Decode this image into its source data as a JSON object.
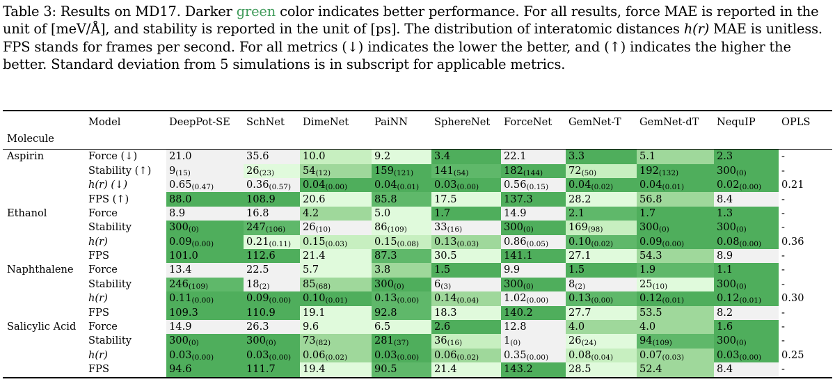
{
  "caption": {
    "lines": [
      "Table 3: Results on MD17. Darker ",
      "green",
      " color indicates better performance. For all results, force MAE is reported in the unit of [meV/Å], and stability is reported in the unit of [ps]. The distribution of interatomic distances ",
      "h(r)",
      " MAE is unitless. FPS stands for frames per second. For all metrics (↓) indicates the lower the better, and (↑) indicates the higher the better. Standard deviation from 5 simulations is in subscript for applicable metrics."
    ]
  },
  "header": {
    "model_label": "Model",
    "molecule_label": "Molecule",
    "models": [
      "DeepPot-SE",
      "SchNet",
      "DimeNet",
      "PaiNN",
      "SphereNet",
      "ForceNet",
      "GemNet-T",
      "GemNet-dT",
      "NequIP",
      "OPLS"
    ]
  },
  "rows": [
    {
      "molecule": "Aspirin",
      "metric": "Force (↓)",
      "cells": [
        {
          "v": "21.0",
          "s": "0"
        },
        {
          "v": "35.6",
          "s": "0"
        },
        {
          "v": "10.0",
          "s": "2"
        },
        {
          "v": "9.2",
          "s": "1"
        },
        {
          "v": "3.4",
          "s": "5"
        },
        {
          "v": "22.1",
          "s": "0"
        },
        {
          "v": "3.3",
          "s": "5"
        },
        {
          "v": "5.1",
          "s": "3"
        },
        {
          "v": "2.3",
          "s": "5"
        },
        {
          "v": "-"
        }
      ]
    },
    {
      "molecule": "",
      "metric": "Stability (↑)",
      "cells": [
        {
          "v": "9",
          "sd": "(15)",
          "s": "0"
        },
        {
          "v": "26",
          "sd": "(23)",
          "s": "1"
        },
        {
          "v": "54",
          "sd": "(12)",
          "s": "3"
        },
        {
          "v": "159",
          "sd": "(121)",
          "s": "5"
        },
        {
          "v": "141",
          "sd": "(54)",
          "s": "4"
        },
        {
          "v": "182",
          "sd": "(144)",
          "s": "5"
        },
        {
          "v": "72",
          "sd": "(50)",
          "s": "2"
        },
        {
          "v": "192",
          "sd": "(132)",
          "s": "5"
        },
        {
          "v": "300",
          "sd": "(0)",
          "s": "5"
        },
        {
          "v": "-"
        }
      ]
    },
    {
      "molecule": "",
      "metric": "h(r) (↓)",
      "cells": [
        {
          "v": "0.65",
          "sd": "(0.47)",
          "s": "0"
        },
        {
          "v": "0.36",
          "sd": "(0.57)",
          "s": "0"
        },
        {
          "v": "0.04",
          "sd": "(0.00)",
          "s": "5"
        },
        {
          "v": "0.04",
          "sd": "(0.01)",
          "s": "5"
        },
        {
          "v": "0.03",
          "sd": "(0.00)",
          "s": "5"
        },
        {
          "v": "0.56",
          "sd": "(0.15)",
          "s": "0"
        },
        {
          "v": "0.04",
          "sd": "(0.02)",
          "s": "5"
        },
        {
          "v": "0.04",
          "sd": "(0.01)",
          "s": "5"
        },
        {
          "v": "0.02",
          "sd": "(0.00)",
          "s": "5"
        },
        {
          "v": "0.21"
        }
      ]
    },
    {
      "molecule": "",
      "metric": "FPS (↑)",
      "cells": [
        {
          "v": "88.0",
          "s": "5"
        },
        {
          "v": "108.9",
          "s": "5"
        },
        {
          "v": "20.6",
          "s": "1"
        },
        {
          "v": "85.8",
          "s": "4"
        },
        {
          "v": "17.5",
          "s": "1"
        },
        {
          "v": "137.3",
          "s": "5"
        },
        {
          "v": "28.2",
          "s": "1"
        },
        {
          "v": "56.8",
          "s": "3"
        },
        {
          "v": "8.4",
          "s": "0"
        },
        {
          "v": "-"
        }
      ]
    },
    {
      "molecule": "Ethanol",
      "metric": "Force",
      "cells": [
        {
          "v": "8.9",
          "s": "0"
        },
        {
          "v": "16.8",
          "s": "0"
        },
        {
          "v": "4.2",
          "s": "3"
        },
        {
          "v": "5.0",
          "s": "1"
        },
        {
          "v": "1.7",
          "s": "5"
        },
        {
          "v": "14.9",
          "s": "0"
        },
        {
          "v": "2.1",
          "s": "4"
        },
        {
          "v": "1.7",
          "s": "5"
        },
        {
          "v": "1.3",
          "s": "5"
        },
        {
          "v": "-"
        }
      ]
    },
    {
      "molecule": "",
      "metric": "Stability",
      "cells": [
        {
          "v": "300",
          "sd": "(0)",
          "s": "5"
        },
        {
          "v": "247",
          "sd": "(106)",
          "s": "4"
        },
        {
          "v": "26",
          "sd": "(10)",
          "s": "0"
        },
        {
          "v": "86",
          "sd": "(109)",
          "s": "1"
        },
        {
          "v": "33",
          "sd": "(16)",
          "s": "0"
        },
        {
          "v": "300",
          "sd": "(0)",
          "s": "5"
        },
        {
          "v": "169",
          "sd": "(98)",
          "s": "2"
        },
        {
          "v": "300",
          "sd": "(0)",
          "s": "5"
        },
        {
          "v": "300",
          "sd": "(0)",
          "s": "5"
        },
        {
          "v": "-"
        }
      ]
    },
    {
      "molecule": "",
      "metric": "h(r)",
      "cells": [
        {
          "v": "0.09",
          "sd": "(0.00)",
          "s": "5"
        },
        {
          "v": "0.21",
          "sd": "(0.11)",
          "s": "1"
        },
        {
          "v": "0.15",
          "sd": "(0.03)",
          "s": "2"
        },
        {
          "v": "0.15",
          "sd": "(0.08)",
          "s": "2"
        },
        {
          "v": "0.13",
          "sd": "(0.03)",
          "s": "3"
        },
        {
          "v": "0.86",
          "sd": "(0.05)",
          "s": "0"
        },
        {
          "v": "0.10",
          "sd": "(0.02)",
          "s": "4"
        },
        {
          "v": "0.09",
          "sd": "(0.00)",
          "s": "5"
        },
        {
          "v": "0.08",
          "sd": "(0.00)",
          "s": "5"
        },
        {
          "v": "0.36"
        }
      ]
    },
    {
      "molecule": "",
      "metric": "FPS",
      "cells": [
        {
          "v": "101.0",
          "s": "5"
        },
        {
          "v": "112.6",
          "s": "5"
        },
        {
          "v": "21.4",
          "s": "1"
        },
        {
          "v": "87.3",
          "s": "4"
        },
        {
          "v": "30.5",
          "s": "1"
        },
        {
          "v": "141.1",
          "s": "5"
        },
        {
          "v": "27.1",
          "s": "1"
        },
        {
          "v": "54.3",
          "s": "3"
        },
        {
          "v": "8.9",
          "s": "0"
        },
        {
          "v": "-"
        }
      ]
    },
    {
      "molecule": "Naphthalene",
      "metric": "Force",
      "cells": [
        {
          "v": "13.4",
          "s": "0"
        },
        {
          "v": "22.5",
          "s": "0"
        },
        {
          "v": "5.7",
          "s": "1"
        },
        {
          "v": "3.8",
          "s": "3"
        },
        {
          "v": "1.5",
          "s": "5"
        },
        {
          "v": "9.9",
          "s": "0"
        },
        {
          "v": "1.5",
          "s": "5"
        },
        {
          "v": "1.9",
          "s": "4"
        },
        {
          "v": "1.1",
          "s": "5"
        },
        {
          "v": "-"
        }
      ]
    },
    {
      "molecule": "",
      "metric": "Stability",
      "cells": [
        {
          "v": "246",
          "sd": "(109)",
          "s": "4"
        },
        {
          "v": "18",
          "sd": "(2)",
          "s": "0"
        },
        {
          "v": "85",
          "sd": "(68)",
          "s": "3"
        },
        {
          "v": "300",
          "sd": "(0)",
          "s": "5"
        },
        {
          "v": "6",
          "sd": "(3)",
          "s": "0"
        },
        {
          "v": "300",
          "sd": "(0)",
          "s": "5"
        },
        {
          "v": "8",
          "sd": "(2)",
          "s": "0"
        },
        {
          "v": "25",
          "sd": "(10)",
          "s": "1"
        },
        {
          "v": "300",
          "sd": "(0)",
          "s": "5"
        },
        {
          "v": "-"
        }
      ]
    },
    {
      "molecule": "",
      "metric": "h(r)",
      "cells": [
        {
          "v": "0.11",
          "sd": "(0.00)",
          "s": "5"
        },
        {
          "v": "0.09",
          "sd": "(0.00)",
          "s": "5"
        },
        {
          "v": "0.10",
          "sd": "(0.01)",
          "s": "5"
        },
        {
          "v": "0.13",
          "sd": "(0.00)",
          "s": "4"
        },
        {
          "v": "0.14",
          "sd": "(0.04)",
          "s": "3"
        },
        {
          "v": "1.02",
          "sd": "(0.00)",
          "s": "0"
        },
        {
          "v": "0.13",
          "sd": "(0.00)",
          "s": "4"
        },
        {
          "v": "0.12",
          "sd": "(0.01)",
          "s": "5"
        },
        {
          "v": "0.12",
          "sd": "(0.01)",
          "s": "5"
        },
        {
          "v": "0.30"
        }
      ]
    },
    {
      "molecule": "",
      "metric": "FPS",
      "cells": [
        {
          "v": "109.3",
          "s": "5"
        },
        {
          "v": "110.9",
          "s": "5"
        },
        {
          "v": "19.1",
          "s": "1"
        },
        {
          "v": "92.8",
          "s": "4"
        },
        {
          "v": "18.3",
          "s": "1"
        },
        {
          "v": "140.2",
          "s": "5"
        },
        {
          "v": "27.7",
          "s": "1"
        },
        {
          "v": "53.5",
          "s": "3"
        },
        {
          "v": "8.2",
          "s": "0"
        },
        {
          "v": "-"
        }
      ]
    },
    {
      "molecule": "Salicylic Acid",
      "metric": "Force",
      "cells": [
        {
          "v": "14.9",
          "s": "0"
        },
        {
          "v": "26.3",
          "s": "0"
        },
        {
          "v": "9.6",
          "s": "1"
        },
        {
          "v": "6.5",
          "s": "1"
        },
        {
          "v": "2.6",
          "s": "5"
        },
        {
          "v": "12.8",
          "s": "0"
        },
        {
          "v": "4.0",
          "s": "3"
        },
        {
          "v": "4.0",
          "s": "3"
        },
        {
          "v": "1.6",
          "s": "5"
        },
        {
          "v": "-"
        }
      ]
    },
    {
      "molecule": "",
      "metric": "Stability",
      "cells": [
        {
          "v": "300",
          "sd": "(0)",
          "s": "5"
        },
        {
          "v": "300",
          "sd": "(0)",
          "s": "5"
        },
        {
          "v": "73",
          "sd": "(82)",
          "s": "3"
        },
        {
          "v": "281",
          "sd": "(37)",
          "s": "5"
        },
        {
          "v": "36",
          "sd": "(16)",
          "s": "2"
        },
        {
          "v": "1",
          "sd": "(0)",
          "s": "0"
        },
        {
          "v": "26",
          "sd": "(24)",
          "s": "1"
        },
        {
          "v": "94",
          "sd": "(109)",
          "s": "4"
        },
        {
          "v": "300",
          "sd": "(0)",
          "s": "5"
        },
        {
          "v": "-"
        }
      ]
    },
    {
      "molecule": "",
      "metric": "h(r)",
      "cells": [
        {
          "v": "0.03",
          "sd": "(0.00)",
          "s": "5"
        },
        {
          "v": "0.03",
          "sd": "(0.00)",
          "s": "5"
        },
        {
          "v": "0.06",
          "sd": "(0.02)",
          "s": "3"
        },
        {
          "v": "0.03",
          "sd": "(0.00)",
          "s": "5"
        },
        {
          "v": "0.06",
          "sd": "(0.02)",
          "s": "3"
        },
        {
          "v": "0.35",
          "sd": "(0.00)",
          "s": "0"
        },
        {
          "v": "0.08",
          "sd": "(0.04)",
          "s": "2"
        },
        {
          "v": "0.07",
          "sd": "(0.03)",
          "s": "3"
        },
        {
          "v": "0.03",
          "sd": "(0.00)",
          "s": "5"
        },
        {
          "v": "0.25"
        }
      ]
    },
    {
      "molecule": "",
      "metric": "FPS",
      "cells": [
        {
          "v": "94.6",
          "s": "5"
        },
        {
          "v": "111.7",
          "s": "5"
        },
        {
          "v": "19.4",
          "s": "1"
        },
        {
          "v": "90.5",
          "s": "4"
        },
        {
          "v": "21.4",
          "s": "1"
        },
        {
          "v": "143.2",
          "s": "5"
        },
        {
          "v": "28.5",
          "s": "1"
        },
        {
          "v": "52.4",
          "s": "3"
        },
        {
          "v": "8.4",
          "s": "0"
        },
        {
          "v": "-"
        }
      ]
    }
  ]
}
